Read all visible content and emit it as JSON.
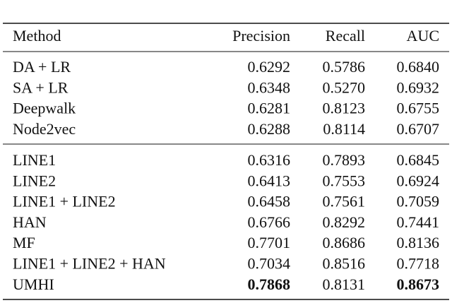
{
  "table": {
    "header": [
      "Method",
      "Precision",
      "Recall",
      "AUC"
    ],
    "groups": [
      [
        [
          "DA + LR",
          "0.6292",
          "0.5786",
          "0.6840"
        ],
        [
          "SA + LR",
          "0.6348",
          "0.5270",
          "0.6932"
        ],
        [
          "Deepwalk",
          "0.6281",
          "0.8123",
          "0.6755"
        ],
        [
          "Node2vec",
          "0.6288",
          "0.8114",
          "0.6707"
        ]
      ],
      [
        [
          "LINE1",
          "0.6316",
          "0.7893",
          "0.6845"
        ],
        [
          "LINE2",
          "0.6413",
          "0.7553",
          "0.6924"
        ],
        [
          "LINE1 + LINE2",
          "0.6458",
          "0.7561",
          "0.7059"
        ],
        [
          "HAN",
          "0.6766",
          "0.8292",
          "0.7441"
        ],
        [
          "MF",
          "0.7701",
          "0.8686",
          "0.8136"
        ],
        [
          "LINE1 + LINE2 + HAN",
          "0.7034",
          "0.8516",
          "0.7718"
        ],
        [
          "UMHI",
          "0.7868",
          "0.8131",
          "0.8673"
        ]
      ]
    ]
  }
}
